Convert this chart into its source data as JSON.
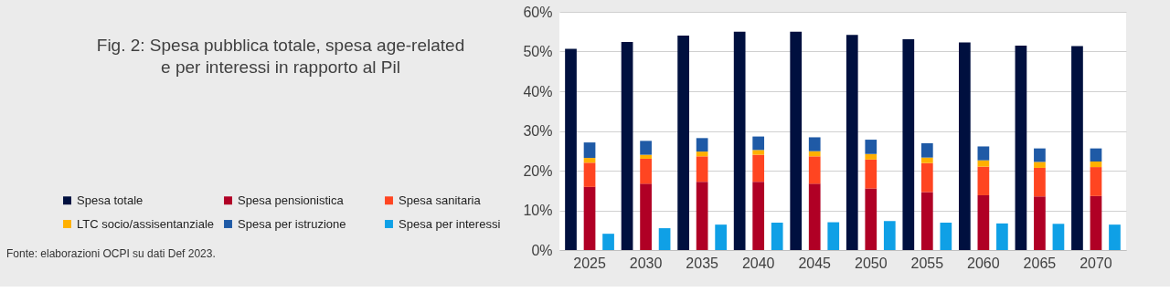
{
  "chart_data": {
    "type": "bar",
    "title": "Fig. 2: Spesa pubblica totale, spesa age-related\ne per interessi in rapporto al Pil",
    "annotations": [
      "Fonte: elaborazioni OCPI su dati Def 2023."
    ],
    "categories": [
      null,
      "2025",
      null,
      null,
      "2030",
      null,
      null,
      "2035",
      null,
      null,
      "2040",
      null,
      null,
      "2045",
      null,
      null,
      "2050",
      null,
      null,
      "2055",
      null,
      null,
      "2060",
      null,
      null,
      "2065",
      null,
      null,
      "2070",
      null
    ],
    "stacked": true,
    "series": [
      {
        "name": "Spesa totale",
        "color": "#00103f",
        "values": [
          50.7,
          null,
          null,
          52.4,
          null,
          null,
          54.0,
          null,
          null,
          55.0,
          null,
          null,
          55.0,
          null,
          null,
          54.2,
          null,
          null,
          53.1,
          null,
          null,
          52.3,
          null,
          null,
          51.5,
          null,
          null,
          51.4,
          null,
          null
        ]
      },
      {
        "name": "Spesa pensionistica",
        "color": "#b00025",
        "values": [
          null,
          15.9,
          null,
          null,
          16.7,
          null,
          null,
          17.2,
          null,
          null,
          17.2,
          null,
          null,
          16.7,
          null,
          null,
          15.5,
          null,
          null,
          14.6,
          null,
          null,
          13.8,
          null,
          null,
          13.5,
          null,
          null,
          13.6,
          null
        ]
      },
      {
        "name": "Spesa sanitaria",
        "color": "#ff4521",
        "values": [
          null,
          6.1,
          null,
          null,
          6.3,
          null,
          null,
          6.4,
          null,
          null,
          6.8,
          null,
          null,
          6.9,
          null,
          null,
          7.3,
          null,
          null,
          7.3,
          null,
          null,
          7.2,
          null,
          null,
          7.2,
          null,
          null,
          7.3,
          null
        ]
      },
      {
        "name": "LTC socio/assisentanziale",
        "color": "#ffb000",
        "values": [
          null,
          1.2,
          null,
          null,
          1.0,
          null,
          null,
          1.2,
          null,
          null,
          1.2,
          null,
          null,
          1.3,
          null,
          null,
          1.4,
          null,
          null,
          1.4,
          null,
          null,
          1.6,
          null,
          null,
          1.5,
          null,
          null,
          1.4,
          null
        ]
      },
      {
        "name": "Spesa per istruzione",
        "color": "#1f5aa6",
        "values": [
          null,
          3.9,
          null,
          null,
          3.5,
          null,
          null,
          3.4,
          null,
          null,
          3.4,
          null,
          null,
          3.5,
          null,
          null,
          3.6,
          null,
          null,
          3.6,
          null,
          null,
          3.5,
          null,
          null,
          3.4,
          null,
          null,
          3.3,
          null
        ]
      },
      {
        "name": "Spesa per interessi",
        "color": "#0fa0e6",
        "values": [
          null,
          null,
          4.1,
          null,
          null,
          5.5,
          null,
          null,
          6.4,
          null,
          null,
          6.9,
          null,
          null,
          7.0,
          null,
          null,
          7.3,
          null,
          null,
          6.9,
          null,
          null,
          6.7,
          null,
          null,
          6.6,
          null,
          null,
          6.4
        ]
      }
    ],
    "ylim": [
      0,
      60
    ],
    "yticks": [
      {
        "value": 0,
        "label": "0%"
      },
      {
        "value": 10,
        "label": "10%"
      },
      {
        "value": 20,
        "label": "20%"
      },
      {
        "value": 30,
        "label": "30%"
      },
      {
        "value": 40,
        "label": "40%"
      },
      {
        "value": 50,
        "label": "50%"
      },
      {
        "value": 60,
        "label": "60%"
      }
    ],
    "grid": "y",
    "legend": "left"
  }
}
